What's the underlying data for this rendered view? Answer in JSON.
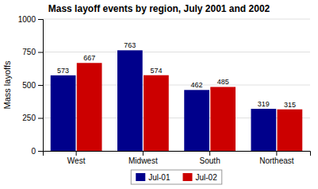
{
  "chart_data": {
    "type": "bar",
    "title": "Mass layoff events by region, July 2001 and 2002",
    "categories": [
      "West",
      "Midwest",
      "South",
      "Northeast"
    ],
    "series": [
      {
        "name": "Jul-01",
        "color": "#00008B",
        "values": [
          573,
          763,
          462,
          319
        ]
      },
      {
        "name": "Jul-02",
        "color": "#CC0000",
        "values": [
          667,
          574,
          485,
          315
        ]
      }
    ],
    "ylabel": "Mass layoffs",
    "ylim": [
      0,
      1000
    ],
    "yticks": [
      0,
      250,
      500,
      750,
      1000
    ],
    "grid": true,
    "legend": "bottom",
    "data_labels": true
  }
}
